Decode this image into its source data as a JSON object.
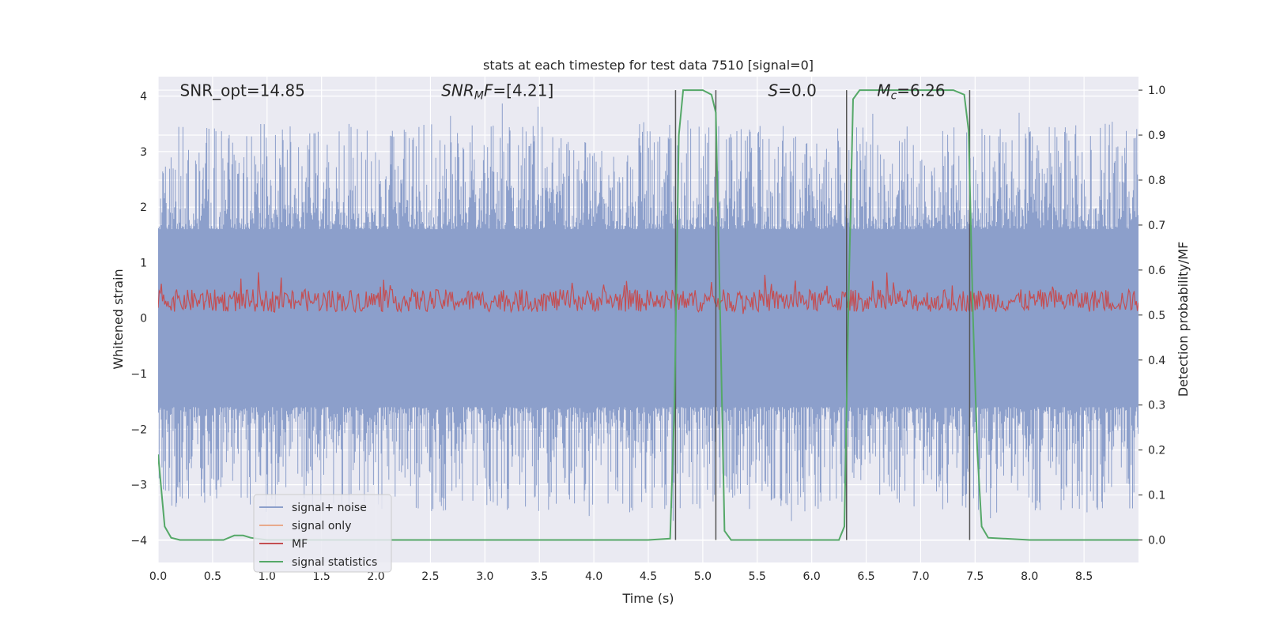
{
  "chart_data": {
    "type": "line",
    "title": "stats at each timestep for test data 7510 [signal=0]",
    "xlabel": "Time (s)",
    "ylabel_left": "Whitened strain",
    "ylabel_right": "Detection probability/MF",
    "xlim": [
      0.0,
      9.0
    ],
    "ylim_left": [
      -4.4,
      4.35
    ],
    "ylim_right": [
      -0.05,
      1.03
    ],
    "xticks": [
      "0.0",
      "0.5",
      "1.0",
      "1.5",
      "2.0",
      "2.5",
      "3.0",
      "3.5",
      "4.0",
      "4.5",
      "5.0",
      "5.5",
      "6.0",
      "6.5",
      "7.0",
      "7.5",
      "8.0",
      "8.5"
    ],
    "yticks_left": [
      "4",
      "3",
      "2",
      "1",
      "0",
      "−1",
      "−2",
      "−3",
      "−4"
    ],
    "yticks_right": [
      "1.0",
      "0.9",
      "0.8",
      "0.7",
      "0.6",
      "0.5",
      "0.4",
      "0.3",
      "0.2",
      "0.1",
      "0.0"
    ],
    "grid": true,
    "background": "#EAEAF2",
    "annotations": [
      {
        "text": "SNR_opt=14.85",
        "x": 0.2,
        "y": 4.1
      },
      {
        "text": "SNR_MF=[4.21]",
        "x": 2.6,
        "y": 4.1
      },
      {
        "text": "S=0.0",
        "x": 5.6,
        "y": 4.1
      },
      {
        "text": "Mc=6.26",
        "x": 6.6,
        "y": 4.1
      }
    ],
    "vertical_lines": [
      4.75,
      5.12,
      6.32,
      7.45
    ],
    "series": [
      {
        "name": "signal+ noise",
        "color": "#8C9FCB",
        "axis": "left",
        "envelope": {
          "band_low": -1.6,
          "band_high": 1.6,
          "spike_max": 4.0,
          "spike_min": -3.7
        }
      },
      {
        "name": "signal only",
        "color": "#E8AA8C",
        "axis": "left"
      },
      {
        "name": "MF",
        "color": "#C44E52",
        "axis": "right",
        "range": [
          0.5,
          0.6
        ]
      },
      {
        "name": "signal statistics",
        "color": "#55A868",
        "axis": "right",
        "x": [
          0.0,
          0.06,
          0.12,
          0.2,
          0.4,
          0.6,
          0.7,
          0.78,
          0.85,
          1.0,
          1.5,
          2.0,
          2.5,
          3.0,
          4.0,
          4.5,
          4.7,
          4.74,
          4.78,
          4.82,
          4.88,
          5.0,
          5.08,
          5.12,
          5.16,
          5.2,
          5.26,
          5.5,
          6.0,
          6.25,
          6.3,
          6.34,
          6.38,
          6.44,
          6.6,
          7.0,
          7.3,
          7.4,
          7.44,
          7.48,
          7.52,
          7.56,
          7.62,
          8.0,
          8.5,
          9.0
        ],
        "y": [
          0.19,
          0.03,
          0.005,
          0.0,
          0.0,
          0.0,
          0.01,
          0.01,
          0.005,
          0.0,
          0.0,
          0.0,
          0.0,
          0.0,
          0.0,
          0.0,
          0.003,
          0.3,
          0.9,
          1.0,
          1.0,
          1.0,
          0.99,
          0.95,
          0.5,
          0.02,
          0.0,
          0.0,
          0.0,
          0.0,
          0.03,
          0.55,
          0.98,
          1.0,
          1.0,
          1.0,
          1.0,
          0.99,
          0.91,
          0.5,
          0.2,
          0.03,
          0.005,
          0.0,
          0.0,
          0.0
        ]
      }
    ]
  }
}
